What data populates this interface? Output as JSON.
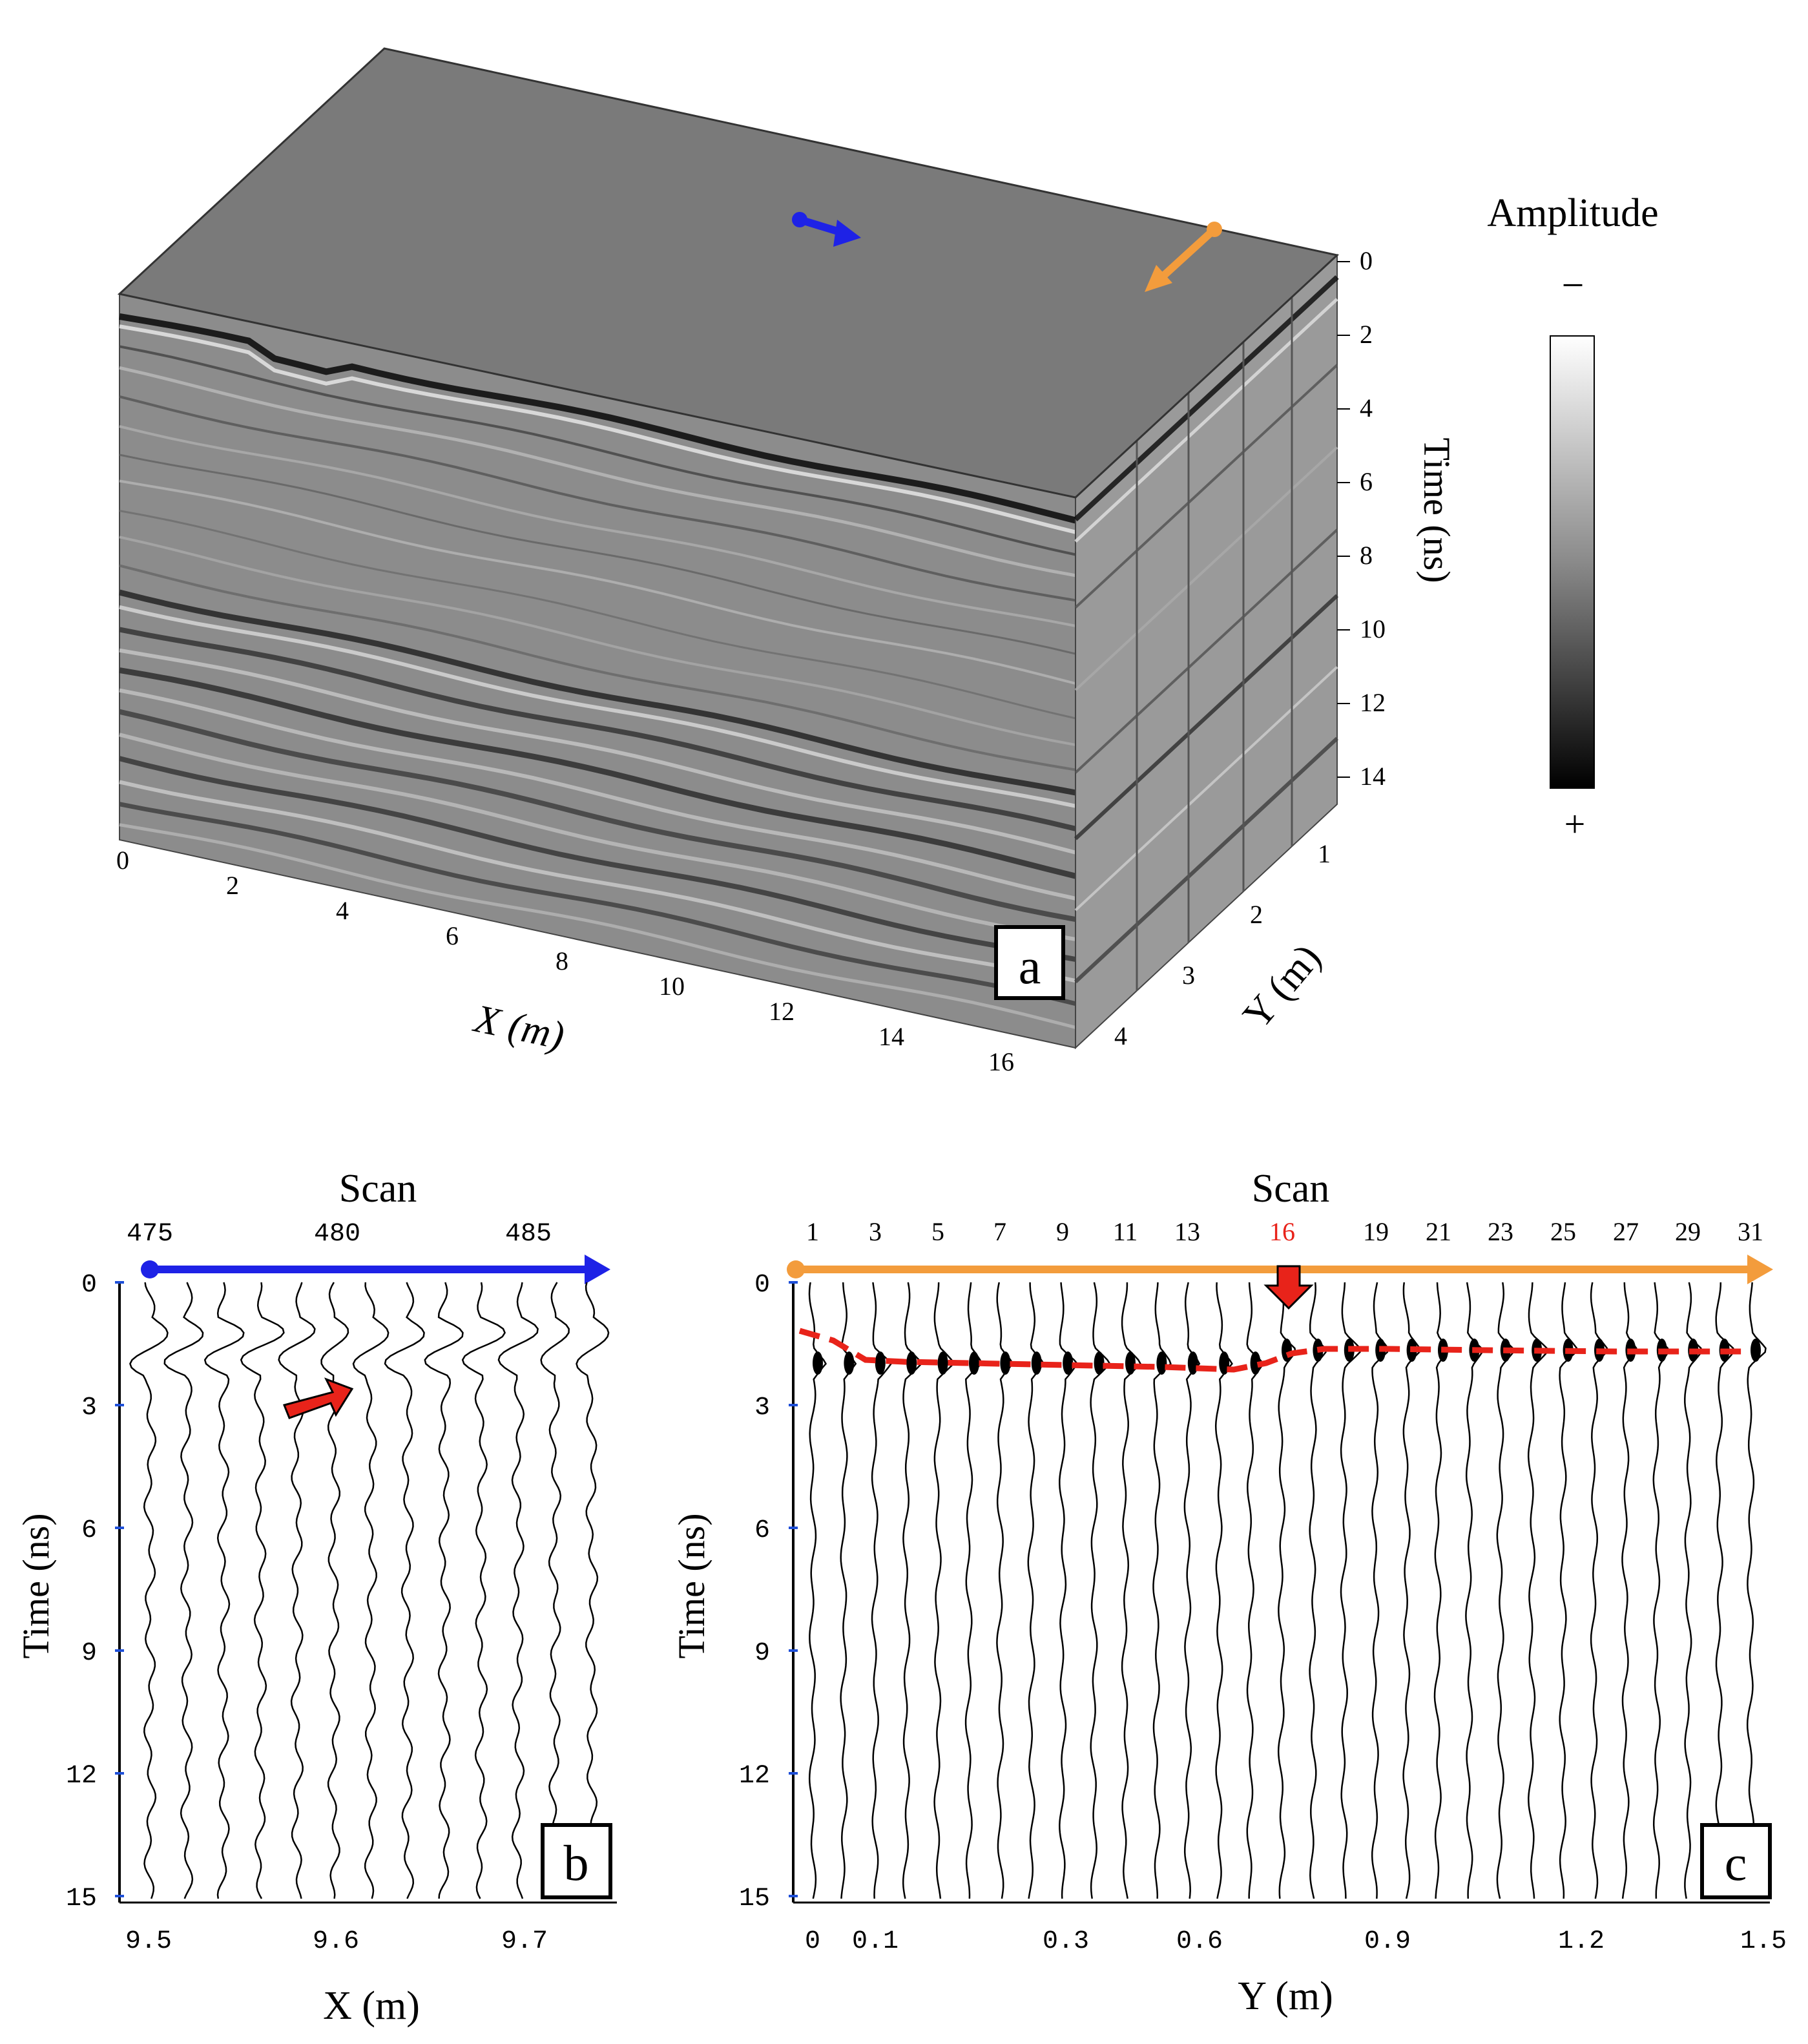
{
  "panel_a": {
    "label": "a",
    "legend_title": "Amplitude",
    "legend_min_sign": "−",
    "legend_max_sign": "+",
    "x_axis_title": "X (m)",
    "y_axis_title": "Y (m)",
    "time_axis_title": "Time (ns)",
    "x_ticks": [
      "0",
      "2",
      "4",
      "6",
      "8",
      "10",
      "12",
      "14",
      "16"
    ],
    "y_ticks": [
      "1",
      "2",
      "3",
      "4"
    ],
    "time_ticks": [
      "0",
      "2",
      "4",
      "6",
      "8",
      "10",
      "12",
      "14"
    ],
    "colors": {
      "top_face": "#7a7a7a",
      "blue_arrow": "#1e22e6",
      "orange_arrow": "#f39c3c"
    }
  },
  "panel_b": {
    "label": "b",
    "scan_title": "Scan",
    "scan_ticks": [
      "475",
      "480",
      "485"
    ],
    "time_ticks": [
      "0",
      "3",
      "6",
      "9",
      "12",
      "15"
    ],
    "x_ticks": [
      "9.5",
      "9.6",
      "9.7"
    ],
    "y_axis_title": "Time (ns)",
    "x_axis_title": "X (m)",
    "trace_count": 13,
    "colors": {
      "scan_arrow": "#1e22e6",
      "pointer": "#e8231a"
    }
  },
  "panel_c": {
    "label": "c",
    "scan_title": "Scan",
    "scan_ticks": [
      "1",
      "3",
      "5",
      "7",
      "9",
      "11",
      "13",
      "16",
      "19",
      "21",
      "23",
      "25",
      "27",
      "29",
      "31"
    ],
    "highlight_scan": "16",
    "time_ticks": [
      "0",
      "3",
      "6",
      "9",
      "12",
      "15"
    ],
    "x_ticks": [
      "0",
      "0.1",
      "0.3",
      "0.6",
      "0.9",
      "1.2",
      "1.5"
    ],
    "y_axis_title": "Time (ns)",
    "x_axis_title": "Y (m)",
    "trace_count": 31,
    "colors": {
      "scan_arrow": "#f39c3c",
      "dashed_line": "#e8231a",
      "pointer": "#e8231a"
    }
  }
}
